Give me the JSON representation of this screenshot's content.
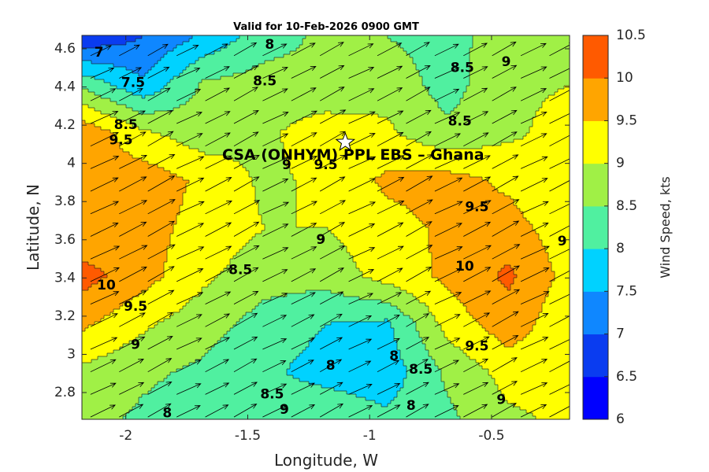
{
  "chart_data": {
    "type": "heatmap",
    "title": "Valid for 10-Feb-2026 0900 GMT",
    "xlabel": "Longitude, W",
    "ylabel": "Latitude, N",
    "colorbar_label": "Wind Speed, kts",
    "xlim": [
      -2.18,
      -0.18
    ],
    "ylim": [
      2.66,
      4.67
    ],
    "x_ticks": [
      -2,
      -1.5,
      -1,
      -0.5
    ],
    "x_tick_labels": [
      "-2",
      "-1.5",
      "-1",
      "-0.5"
    ],
    "y_ticks": [
      2.8,
      3,
      3.2,
      3.4,
      3.6,
      3.8,
      4,
      4.2,
      4.4,
      4.6
    ],
    "y_tick_labels": [
      "2.8",
      "3",
      "3.2",
      "3.4",
      "3.6",
      "3.8",
      "4",
      "4.2",
      "4.4",
      "4.6"
    ],
    "colorbar": {
      "range": [
        6,
        10.5
      ],
      "levels": [
        6,
        6.5,
        7,
        7.5,
        8,
        8.5,
        9,
        9.5,
        10,
        10.5
      ],
      "tick_labels": [
        "6",
        "6.5",
        "7",
        "7.5",
        "8",
        "8.5",
        "9",
        "9.5",
        "10",
        "10.5"
      ],
      "colors": [
        "#0000ff",
        "#0a3cf0",
        "#0f87ff",
        "#00d2ff",
        "#50f0a0",
        "#a0f046",
        "#ffff00",
        "#ffa500",
        "#ff5a00"
      ]
    },
    "grid_x": [
      -2.18,
      -1.93,
      -1.68,
      -1.43,
      -1.18,
      -0.93,
      -0.68,
      -0.43,
      -0.18
    ],
    "grid_y": [
      2.66,
      2.91,
      3.16,
      3.41,
      3.66,
      3.91,
      4.16,
      4.41,
      4.66
    ],
    "speed_grid": [
      [
        8.7,
        8.4,
        8.2,
        8.3,
        8.4,
        8.1,
        8.4,
        8.9,
        9.1
      ],
      [
        8.9,
        8.6,
        8.4,
        8.1,
        7.8,
        7.7,
        8.6,
        9.2,
        9.2
      ],
      [
        9.6,
        9.1,
        8.7,
        8.3,
        8.0,
        7.9,
        9.2,
        9.8,
        9.1
      ],
      [
        10.2,
        9.7,
        9.1,
        8.7,
        8.7,
        9.2,
        9.6,
        10.1,
        9.3
      ],
      [
        9.6,
        9.7,
        9.3,
        9.0,
        9.0,
        9.3,
        9.6,
        9.7,
        9.2
      ],
      [
        9.7,
        9.8,
        9.4,
        8.9,
        9.1,
        9.6,
        9.7,
        9.4,
        9.0
      ],
      [
        9.9,
        9.1,
        8.7,
        8.9,
        9.3,
        9.1,
        8.6,
        8.9,
        9.2
      ],
      [
        8.4,
        7.6,
        8.6,
        8.7,
        8.6,
        8.8,
        8.3,
        8.9,
        9.0
      ],
      [
        6.6,
        7.0,
        7.6,
        8.3,
        8.6,
        8.5,
        8.3,
        8.8,
        9.0
      ]
    ],
    "wind_direction": "from south-west",
    "contour_labels": [
      {
        "text": "7",
        "lon": -2.11,
        "lat": 4.58
      },
      {
        "text": "7.5",
        "lon": -1.97,
        "lat": 4.42
      },
      {
        "text": "8",
        "lon": -1.41,
        "lat": 4.62
      },
      {
        "text": "8.5",
        "lon": -1.43,
        "lat": 4.43
      },
      {
        "text": "8.5",
        "lon": -0.62,
        "lat": 4.5
      },
      {
        "text": "9",
        "lon": -0.44,
        "lat": 4.53
      },
      {
        "text": "8.5",
        "lon": -0.63,
        "lat": 4.22
      },
      {
        "text": "8.5",
        "lon": -2.0,
        "lat": 4.2
      },
      {
        "text": "9.5",
        "lon": -2.02,
        "lat": 4.12
      },
      {
        "text": "9",
        "lon": -1.34,
        "lat": 3.99
      },
      {
        "text": "9.5",
        "lon": -1.18,
        "lat": 3.99
      },
      {
        "text": "9.5",
        "lon": -0.56,
        "lat": 3.77
      },
      {
        "text": "9",
        "lon": -1.2,
        "lat": 3.6
      },
      {
        "text": "9",
        "lon": -0.21,
        "lat": 3.59
      },
      {
        "text": "8.5",
        "lon": -1.53,
        "lat": 3.44
      },
      {
        "text": "10",
        "lon": -0.61,
        "lat": 3.46
      },
      {
        "text": "10",
        "lon": -2.08,
        "lat": 3.36
      },
      {
        "text": "9.5",
        "lon": -1.96,
        "lat": 3.25
      },
      {
        "text": "9",
        "lon": -1.96,
        "lat": 3.05
      },
      {
        "text": "9.5",
        "lon": -0.56,
        "lat": 3.04
      },
      {
        "text": "8",
        "lon": -1.16,
        "lat": 2.94
      },
      {
        "text": "8",
        "lon": -0.9,
        "lat": 2.99
      },
      {
        "text": "8.5",
        "lon": -0.79,
        "lat": 2.92
      },
      {
        "text": "8.5",
        "lon": -1.4,
        "lat": 2.79
      },
      {
        "text": "9",
        "lon": -1.35,
        "lat": 2.71
      },
      {
        "text": "8",
        "lon": -0.83,
        "lat": 2.73
      },
      {
        "text": "9",
        "lon": -0.46,
        "lat": 2.76
      },
      {
        "text": "8",
        "lon": -1.83,
        "lat": 2.69
      }
    ],
    "station": {
      "name": "CSA (ONHYM) PPL EBS  – Ghana",
      "lon": -1.1,
      "lat": 4.11
    }
  }
}
